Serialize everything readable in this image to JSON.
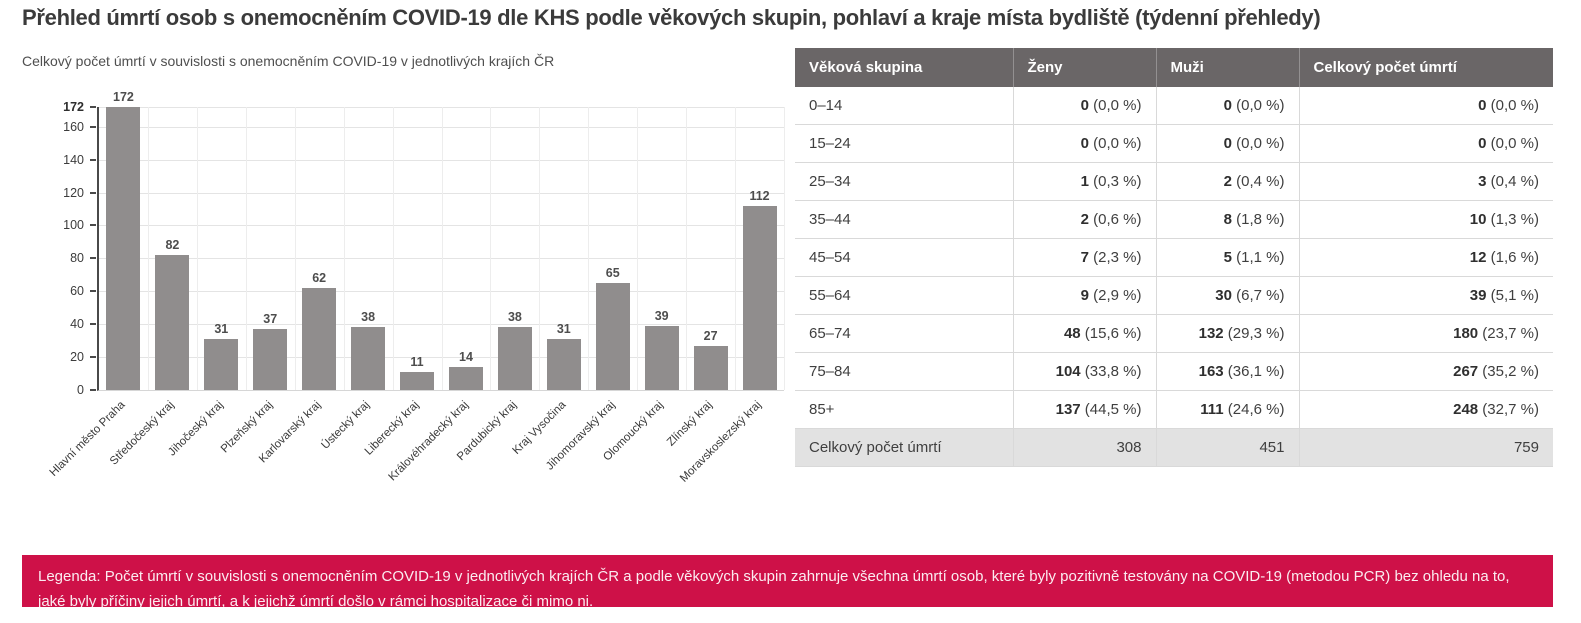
{
  "page": {
    "title": "Přehled úmrtí osob s onemocněním COVID-19 dle KHS podle věkových skupin, pohlaví a kraje místa bydliště (týdenní přehledy)"
  },
  "chart_data": {
    "type": "bar",
    "title": "Celkový počet úmrtí v souvislosti s onemocněním COVID-19 v jednotlivých krajích ČR",
    "categories": [
      "Hlavní město Praha",
      "Středočeský kraj",
      "Jihočeský kraj",
      "Plzeňský kraj",
      "Karlovarský kraj",
      "Ústecký kraj",
      "Liberecký kraj",
      "Královéhradecký kraj",
      "Pardubický kraj",
      "Kraj Vysočina",
      "Jihomoravský kraj",
      "Olomoucký kraj",
      "Zlínský kraj",
      "Moravskoslezský kraj"
    ],
    "values": [
      172,
      82,
      31,
      37,
      62,
      38,
      11,
      14,
      38,
      31,
      65,
      39,
      27,
      112
    ],
    "xlabel": "",
    "ylabel": "",
    "ylim": [
      0,
      172
    ],
    "yticks": [
      0,
      20,
      40,
      60,
      80,
      100,
      120,
      140,
      160,
      172
    ],
    "grid": true,
    "value_labels": true,
    "legend_position": "none",
    "bar_color": "#908d8d"
  },
  "table": {
    "headers": [
      "Věková skupina",
      "Ženy",
      "Muži",
      "Celkový počet úmrtí"
    ],
    "rows": [
      {
        "age": "0–14",
        "cells": [
          [
            "0",
            "(0,0 %)"
          ],
          [
            "0",
            "(0,0 %)"
          ],
          [
            "0",
            "(0,0 %)"
          ]
        ]
      },
      {
        "age": "15–24",
        "cells": [
          [
            "0",
            "(0,0 %)"
          ],
          [
            "0",
            "(0,0 %)"
          ],
          [
            "0",
            "(0,0 %)"
          ]
        ]
      },
      {
        "age": "25–34",
        "cells": [
          [
            "1",
            "(0,3 %)"
          ],
          [
            "2",
            "(0,4 %)"
          ],
          [
            "3",
            "(0,4 %)"
          ]
        ]
      },
      {
        "age": "35–44",
        "cells": [
          [
            "2",
            "(0,6 %)"
          ],
          [
            "8",
            "(1,8 %)"
          ],
          [
            "10",
            "(1,3 %)"
          ]
        ]
      },
      {
        "age": "45–54",
        "cells": [
          [
            "7",
            "(2,3 %)"
          ],
          [
            "5",
            "(1,1 %)"
          ],
          [
            "12",
            "(1,6 %)"
          ]
        ]
      },
      {
        "age": "55–64",
        "cells": [
          [
            "9",
            "(2,9 %)"
          ],
          [
            "30",
            "(6,7 %)"
          ],
          [
            "39",
            "(5,1 %)"
          ]
        ]
      },
      {
        "age": "65–74",
        "cells": [
          [
            "48",
            "(15,6 %)"
          ],
          [
            "132",
            "(29,3 %)"
          ],
          [
            "180",
            "(23,7 %)"
          ]
        ]
      },
      {
        "age": "75–84",
        "cells": [
          [
            "104",
            "(33,8 %)"
          ],
          [
            "163",
            "(36,1 %)"
          ],
          [
            "267",
            "(35,2 %)"
          ]
        ]
      },
      {
        "age": "85+",
        "cells": [
          [
            "137",
            "(44,5 %)"
          ],
          [
            "111",
            "(24,6 %)"
          ],
          [
            "248",
            "(32,7 %)"
          ]
        ]
      }
    ],
    "footer": {
      "label": "Celkový počet úmrtí",
      "values": [
        "308",
        "451",
        "759"
      ]
    }
  },
  "legend": {
    "text": "Legenda: Počet úmrtí v souvislosti s onemocněním COVID-19 v jednotlivých krajích ČR a podle věkových skupin zahrnuje všechna úmrtí osob, které byly pozitivně testovány na COVID-19 (metodou PCR) bez ohledu na to, jaké byly příčiny jejich úmrtí, a k jejichž úmrtí došlo v rámci hospitalizace či mimo ni."
  },
  "colors": {
    "accent_red": "#ce1148",
    "bar": "#908d8d",
    "table_header_bg": "#6a6667",
    "table_footer_bg": "#e2e2e2",
    "title_text": "#3b3b3b",
    "body_text": "#3f3f3f"
  }
}
